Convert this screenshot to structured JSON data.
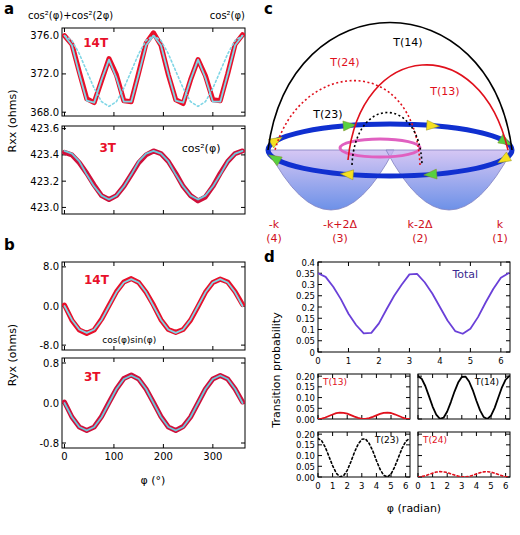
{
  "chart_data": [
    {
      "type": "line",
      "panel": "a",
      "annotations": [
        "14T",
        "cos²(φ)+cos²(2φ)",
        "cos²(φ)"
      ],
      "y_label": "Rxx (ohms)",
      "x": [
        0,
        15,
        30,
        45,
        60,
        75,
        90,
        105,
        120,
        135,
        150,
        165,
        180,
        195,
        210,
        225,
        240,
        255,
        270,
        285,
        300,
        315,
        330,
        345,
        360
      ],
      "xlim": [
        -5,
        365
      ],
      "xticks": [
        0,
        100,
        200,
        300
      ],
      "ylim": [
        367.6,
        376.8
      ],
      "yticks": [
        {
          "value": 368,
          "label": "368.0"
        },
        {
          "value": 372,
          "label": "372.0"
        },
        {
          "value": 376,
          "label": "376.0"
        }
      ],
      "tick_labels": "y",
      "series": [
        {
          "color": "#e8102a",
          "line_style": "thick",
          "values": [
            376.0,
            375.1,
            372.2,
            369.4,
            369.0,
            371.3,
            373.6,
            371.9,
            369.2,
            369.1,
            372.1,
            375.2,
            376.3,
            375.0,
            371.9,
            369.3,
            368.9,
            371.4,
            373.5,
            371.8,
            369.3,
            369.2,
            372.0,
            375.1,
            376.1
          ]
        },
        {
          "color": "#7fd6e6",
          "line_style": "solid",
          "values": [
            376.0,
            375.0,
            372.0,
            369.2,
            369.0,
            371.4,
            373.5,
            371.6,
            369.1,
            369.1,
            372.0,
            375.0,
            376.0,
            375.0,
            372.0,
            369.2,
            369.0,
            371.4,
            373.5,
            371.6,
            369.1,
            369.1,
            372.0,
            375.0,
            376.0
          ]
        },
        {
          "color": "#7fd6e6",
          "line_style": "dotted",
          "values": [
            376.0,
            375.5,
            374.1,
            372.3,
            370.5,
            369.1,
            368.6,
            369.1,
            370.5,
            372.3,
            374.1,
            375.5,
            376.0,
            375.5,
            374.1,
            372.3,
            370.5,
            369.1,
            368.6,
            369.1,
            370.5,
            372.3,
            374.1,
            375.5,
            376.0
          ]
        }
      ]
    },
    {
      "type": "line",
      "annotations": [
        "3T",
        "cos²(φ)"
      ],
      "x": [
        0,
        15,
        30,
        45,
        60,
        75,
        90,
        105,
        120,
        135,
        150,
        165,
        180,
        195,
        210,
        225,
        240,
        255,
        270,
        285,
        300,
        315,
        330,
        345,
        360
      ],
      "xlim": [
        -5,
        365
      ],
      "xticks": [
        0,
        100,
        200,
        300
      ],
      "ylim": [
        422.95,
        423.62
      ],
      "yticks": [
        {
          "value": 423.0,
          "label": "423.0"
        },
        {
          "value": 423.2,
          "label": "423.2"
        },
        {
          "value": 423.4,
          "label": "423.4"
        },
        {
          "value": 423.6,
          "label": "423.6"
        }
      ],
      "tick_labels": "y",
      "series": [
        {
          "color": "#d0103a",
          "line_style": "thick",
          "values": [
            423.42,
            423.4,
            423.34,
            423.26,
            423.17,
            423.09,
            423.06,
            423.09,
            423.16,
            423.25,
            423.34,
            423.4,
            423.43,
            423.41,
            423.35,
            423.26,
            423.16,
            423.09,
            423.05,
            423.08,
            423.16,
            423.26,
            423.35,
            423.41,
            423.43
          ]
        },
        {
          "color": "#6cc8dc",
          "line_style": "solid",
          "values": [
            423.43,
            423.41,
            423.35,
            423.25,
            423.16,
            423.09,
            423.06,
            423.09,
            423.16,
            423.25,
            423.35,
            423.41,
            423.43,
            423.41,
            423.35,
            423.25,
            423.16,
            423.09,
            423.06,
            423.09,
            423.16,
            423.25,
            423.35,
            423.41,
            423.43
          ]
        }
      ]
    },
    {
      "type": "line",
      "panel": "b",
      "annotations": [
        "14T",
        "cos(φ)sin(φ)"
      ],
      "y_label": "Ryx (ohms)",
      "x": [
        0,
        15,
        30,
        45,
        60,
        75,
        90,
        105,
        120,
        135,
        150,
        165,
        180,
        195,
        210,
        225,
        240,
        255,
        270,
        285,
        300,
        315,
        330,
        345,
        360
      ],
      "xlim": [
        -5,
        365
      ],
      "xticks": [
        0,
        100,
        200,
        300
      ],
      "ylim": [
        -9,
        9
      ],
      "yticks": [
        {
          "value": -8,
          "label": "-8.0"
        },
        {
          "value": 0,
          "label": "0.0"
        },
        {
          "value": 8,
          "label": "8.0"
        }
      ],
      "tick_labels": "y",
      "series": [
        {
          "color": "#e8102a",
          "line_style": "thick",
          "values": [
            0.2,
            -2.9,
            -4.9,
            -5.6,
            -4.9,
            -2.7,
            0.1,
            2.9,
            4.9,
            5.6,
            4.8,
            2.8,
            0.2,
            -2.8,
            -4.8,
            -5.4,
            -4.8,
            -2.9,
            -0.1,
            2.8,
            4.8,
            5.5,
            4.9,
            2.9,
            0.3
          ]
        },
        {
          "color": "#7fd6e6",
          "line_style": "solid",
          "values": [
            0,
            -2.8,
            -4.8,
            -5.5,
            -4.8,
            -2.8,
            0,
            2.8,
            4.8,
            5.5,
            4.8,
            2.8,
            0,
            -2.8,
            -4.8,
            -5.5,
            -4.8,
            -2.8,
            0,
            2.8,
            4.8,
            5.5,
            4.8,
            2.8,
            0
          ]
        }
      ]
    },
    {
      "type": "line",
      "annotations": [
        "3T"
      ],
      "x_label": "φ (°)",
      "x": [
        0,
        15,
        30,
        45,
        60,
        75,
        90,
        105,
        120,
        135,
        150,
        165,
        180,
        195,
        210,
        225,
        240,
        255,
        270,
        285,
        300,
        315,
        330,
        345,
        360
      ],
      "xlim": [
        -5,
        365
      ],
      "xticks": [
        0,
        100,
        200,
        300
      ],
      "ylim": [
        -0.9,
        0.9
      ],
      "yticks": [
        -0.8,
        {
          "value": 0,
          "label": "0.0"
        },
        0.8
      ],
      "tick_labels": true,
      "series": [
        {
          "color": "#d0103a",
          "line_style": "thick",
          "values": [
            0.02,
            -0.28,
            -0.48,
            -0.55,
            -0.48,
            -0.27,
            0.01,
            0.28,
            0.49,
            0.56,
            0.48,
            0.28,
            0.01,
            -0.27,
            -0.48,
            -0.55,
            -0.47,
            -0.28,
            0.0,
            0.28,
            0.48,
            0.55,
            0.48,
            0.28,
            0.02
          ]
        },
        {
          "color": "#6cc8dc",
          "line_style": "solid",
          "values": [
            0,
            -0.28,
            -0.48,
            -0.55,
            -0.48,
            -0.28,
            0,
            0.28,
            0.48,
            0.55,
            0.48,
            0.28,
            0,
            -0.28,
            -0.48,
            -0.55,
            -0.48,
            -0.28,
            0,
            0.28,
            0.48,
            0.55,
            0.48,
            0.28,
            0
          ]
        }
      ]
    },
    {
      "type": "line",
      "panel": "d",
      "annotations": [
        "Total"
      ],
      "y_label": "Transition probability",
      "x": [
        0,
        0.25,
        0.5,
        0.75,
        1,
        1.25,
        1.5,
        1.75,
        2,
        2.25,
        2.5,
        2.75,
        3,
        3.25,
        3.5,
        3.75,
        4,
        4.25,
        4.5,
        4.75,
        5,
        5.25,
        5.5,
        5.75,
        6,
        6.25
      ],
      "xlim": [
        0,
        6.3
      ],
      "xticks": [
        0,
        1,
        2,
        3,
        4,
        5,
        6
      ],
      "ylim": [
        0,
        0.4
      ],
      "yticks": [
        0,
        0.05,
        0.1,
        0.15,
        0.2,
        0.25,
        0.3,
        0.35,
        0.4
      ],
      "tick_labels": true,
      "series": [
        {
          "color": "#6a40d8",
          "line_style": "solid",
          "values": [
            0.35,
            0.334,
            0.29,
            0.235,
            0.17,
            0.12,
            0.083,
            0.085,
            0.127,
            0.19,
            0.25,
            0.3,
            0.345,
            0.347,
            0.31,
            0.26,
            0.2,
            0.14,
            0.093,
            0.081,
            0.103,
            0.155,
            0.22,
            0.28,
            0.33,
            0.35
          ]
        }
      ]
    },
    {
      "type": "line",
      "legend": "upper left",
      "x": [
        0,
        0.25,
        0.5,
        0.75,
        1,
        1.25,
        1.5,
        1.75,
        2,
        2.25,
        2.5,
        2.75,
        3,
        3.25,
        3.5,
        3.75,
        4,
        4.25,
        4.5,
        4.75,
        5,
        5.25,
        5.5,
        5.75,
        6,
        6.25
      ],
      "xlim": [
        0,
        6.3
      ],
      "xticks": [
        0,
        1,
        2,
        3,
        4,
        5,
        6
      ],
      "ylim": [
        0,
        0.21
      ],
      "yticks": [
        {
          "value": 0,
          "label": "0.00"
        },
        {
          "value": 0.05,
          "label": "0.05"
        },
        {
          "value": 0.1,
          "label": "0.10"
        },
        {
          "value": 0.15,
          "label": "0.15"
        },
        {
          "value": 0.2,
          "label": "0.20"
        }
      ],
      "tick_labels": "y",
      "series": [
        {
          "name": "T(13)",
          "color": "#e0101c",
          "line_style": "solid",
          "values": [
            0,
            0.002,
            0.007,
            0.014,
            0.021,
            0.027,
            0.03,
            0.029,
            0.025,
            0.018,
            0.011,
            0.005,
            0.001,
            0,
            0.004,
            0.01,
            0.017,
            0.024,
            0.029,
            0.03,
            0.028,
            0.022,
            0.015,
            0.008,
            0.002,
            0
          ]
        }
      ]
    },
    {
      "type": "line",
      "legend": "upper right",
      "x": [
        0,
        0.25,
        0.5,
        0.75,
        1,
        1.25,
        1.5,
        1.75,
        2,
        2.25,
        2.5,
        2.75,
        3,
        3.25,
        3.5,
        3.75,
        4,
        4.25,
        4.5,
        4.75,
        5,
        5.25,
        5.5,
        5.75,
        6,
        6.25
      ],
      "xlim": [
        0,
        6.3
      ],
      "xticks": [
        0,
        1,
        2,
        3,
        4,
        5,
        6
      ],
      "ylim": [
        0,
        0.21
      ],
      "yticks": [
        0,
        0.05,
        0.1,
        0.15,
        0.2
      ],
      "tick_labels": false,
      "series": [
        {
          "name": "T(14)",
          "color": "#000000",
          "line_style": "solid",
          "values": [
            0.2,
            0.188,
            0.154,
            0.107,
            0.058,
            0.02,
            0.001,
            0.006,
            0.035,
            0.079,
            0.128,
            0.17,
            0.196,
            0.198,
            0.175,
            0.135,
            0.085,
            0.04,
            0.009,
            0.0,
            0.016,
            0.052,
            0.1,
            0.148,
            0.184,
            0.2
          ]
        }
      ]
    },
    {
      "type": "line",
      "legend": "upper right",
      "x_label": "φ (radian)",
      "x": [
        0,
        0.25,
        0.5,
        0.75,
        1,
        1.25,
        1.5,
        1.75,
        2,
        2.25,
        2.5,
        2.75,
        3,
        3.25,
        3.5,
        3.75,
        4,
        4.25,
        4.5,
        4.75,
        5,
        5.25,
        5.5,
        5.75,
        6,
        6.25
      ],
      "xlim": [
        0,
        6.3
      ],
      "xticks": [
        0,
        1,
        2,
        3,
        4,
        5,
        6
      ],
      "ylim": [
        0,
        0.21
      ],
      "yticks": [
        {
          "value": 0,
          "label": "0.00"
        },
        {
          "value": 0.05,
          "label": "0.05"
        },
        {
          "value": 0.1,
          "label": "0.10"
        },
        {
          "value": 0.15,
          "label": "0.15"
        },
        {
          "value": 0.2,
          "label": "0.20"
        }
      ],
      "tick_labels": true,
      "series": [
        {
          "name": "T(23)",
          "color": "#000000",
          "line_style": "dotted",
          "values": [
            0.18,
            0.169,
            0.139,
            0.096,
            0.053,
            0.018,
            0.001,
            0.006,
            0.031,
            0.071,
            0.116,
            0.153,
            0.176,
            0.178,
            0.157,
            0.122,
            0.077,
            0.036,
            0.008,
            0.0,
            0.014,
            0.047,
            0.09,
            0.133,
            0.166,
            0.18
          ]
        }
      ]
    },
    {
      "type": "line",
      "legend": "upper left",
      "x": [
        0,
        0.25,
        0.5,
        0.75,
        1,
        1.25,
        1.5,
        1.75,
        2,
        2.25,
        2.5,
        2.75,
        3,
        3.25,
        3.5,
        3.75,
        4,
        4.25,
        4.5,
        4.75,
        5,
        5.25,
        5.5,
        5.75,
        6,
        6.25
      ],
      "xlim": [
        0,
        6.3
      ],
      "xticks": [
        0,
        1,
        2,
        3,
        4,
        5,
        6
      ],
      "ylim": [
        0,
        0.21
      ],
      "yticks": [
        0,
        0.05,
        0.1,
        0.15,
        0.2
      ],
      "tick_labels": "x",
      "series": [
        {
          "name": "T(24)",
          "color": "#e0101c",
          "line_style": "dotted",
          "values": [
            0,
            0.002,
            0.006,
            0.012,
            0.018,
            0.023,
            0.025,
            0.024,
            0.021,
            0.015,
            0.009,
            0.004,
            0.001,
            0,
            0.003,
            0.008,
            0.014,
            0.02,
            0.024,
            0.025,
            0.023,
            0.018,
            0.012,
            0.006,
            0.002,
            0
          ]
        }
      ]
    }
  ],
  "diagram": {
    "panel": "c",
    "states": [
      {
        "label": "k",
        "index": "(1)"
      },
      {
        "label": "k-2Δ",
        "index": "(2)"
      },
      {
        "label": "-k+2Δ",
        "index": "(3)"
      },
      {
        "label": "-k",
        "index": "(4)"
      }
    ],
    "transitions": [
      {
        "label": "T(14)",
        "color": "#000000",
        "line_style": "solid"
      },
      {
        "label": "T(13)",
        "color": "#e0101c",
        "line_style": "solid"
      },
      {
        "label": "T(24)",
        "color": "#e0101c",
        "line_style": "dotted"
      },
      {
        "label": "T(23)",
        "color": "#000000",
        "line_style": "dotted"
      }
    ]
  }
}
